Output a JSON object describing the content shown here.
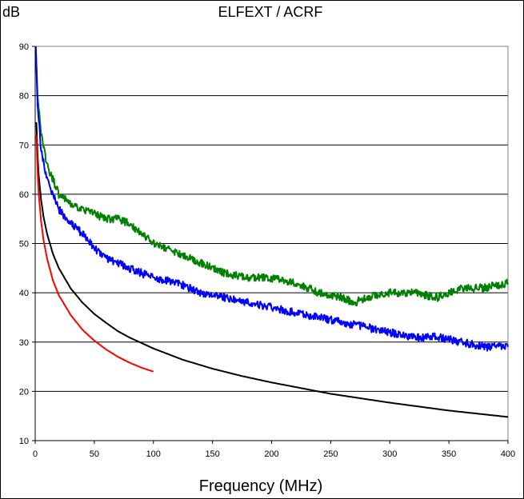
{
  "chart_data": {
    "type": "line",
    "title": "ELFEXT / ACRF",
    "ylabel": "dB",
    "xlabel": "Frequency (MHz)",
    "xlim": [
      0,
      400
    ],
    "ylim": [
      10,
      90
    ],
    "x_ticks": [
      0,
      50,
      100,
      150,
      200,
      250,
      300,
      350,
      400
    ],
    "y_ticks": [
      10,
      20,
      30,
      40,
      50,
      60,
      70,
      80,
      90
    ],
    "grid": "horizontal",
    "series": [
      {
        "color": "#008000",
        "noise": 0.8,
        "x": [
          0.5,
          2,
          5,
          10,
          15,
          20,
          30,
          40,
          50,
          60,
          70,
          80,
          90,
          100,
          120,
          140,
          160,
          180,
          200,
          220,
          240,
          260,
          270,
          280,
          300,
          320,
          340,
          360,
          380,
          400
        ],
        "y": [
          90,
          80,
          72,
          66,
          63,
          60,
          58,
          57,
          56,
          55,
          55,
          54,
          52,
          50,
          48,
          46,
          44,
          43,
          43,
          42,
          40,
          39,
          38,
          39,
          40,
          40,
          39,
          41,
          41,
          42
        ]
      },
      {
        "color": "#0000ff",
        "noise": 0.8,
        "x": [
          0.5,
          2,
          5,
          10,
          15,
          20,
          30,
          40,
          50,
          60,
          70,
          80,
          90,
          100,
          120,
          140,
          160,
          180,
          200,
          220,
          240,
          260,
          280,
          300,
          320,
          340,
          360,
          380,
          400
        ],
        "y": [
          90,
          78,
          69,
          63,
          60,
          57,
          54,
          52,
          49,
          47,
          46,
          45,
          44,
          43,
          42,
          40,
          39,
          38,
          37,
          36,
          35,
          34,
          33,
          32,
          31,
          31,
          30,
          29,
          29
        ]
      },
      {
        "color": "#000000",
        "noise": 0,
        "x": [
          1,
          2,
          3,
          5,
          7,
          10,
          15,
          20,
          30,
          40,
          50,
          60,
          70,
          80,
          100,
          125,
          150,
          175,
          200,
          250,
          300,
          350,
          400
        ],
        "y": [
          74.6,
          67.8,
          63.8,
          58.8,
          55.5,
          52.0,
          47.9,
          45.0,
          40.9,
          38.0,
          35.7,
          33.9,
          32.2,
          30.9,
          28.7,
          26.4,
          24.6,
          23.1,
          21.8,
          19.5,
          17.7,
          16.1,
          14.8
        ]
      },
      {
        "color": "#ff0000",
        "noise": 0,
        "x": [
          1,
          2,
          3,
          5,
          7,
          10,
          15,
          20,
          30,
          40,
          50,
          60,
          70,
          80,
          90,
          100
        ],
        "y": [
          72.0,
          64.5,
          60.0,
          54.5,
          50.8,
          47.0,
          42.5,
          39.5,
          35.5,
          32.5,
          30.3,
          28.5,
          27.0,
          25.8,
          24.8,
          24.0
        ]
      }
    ]
  }
}
